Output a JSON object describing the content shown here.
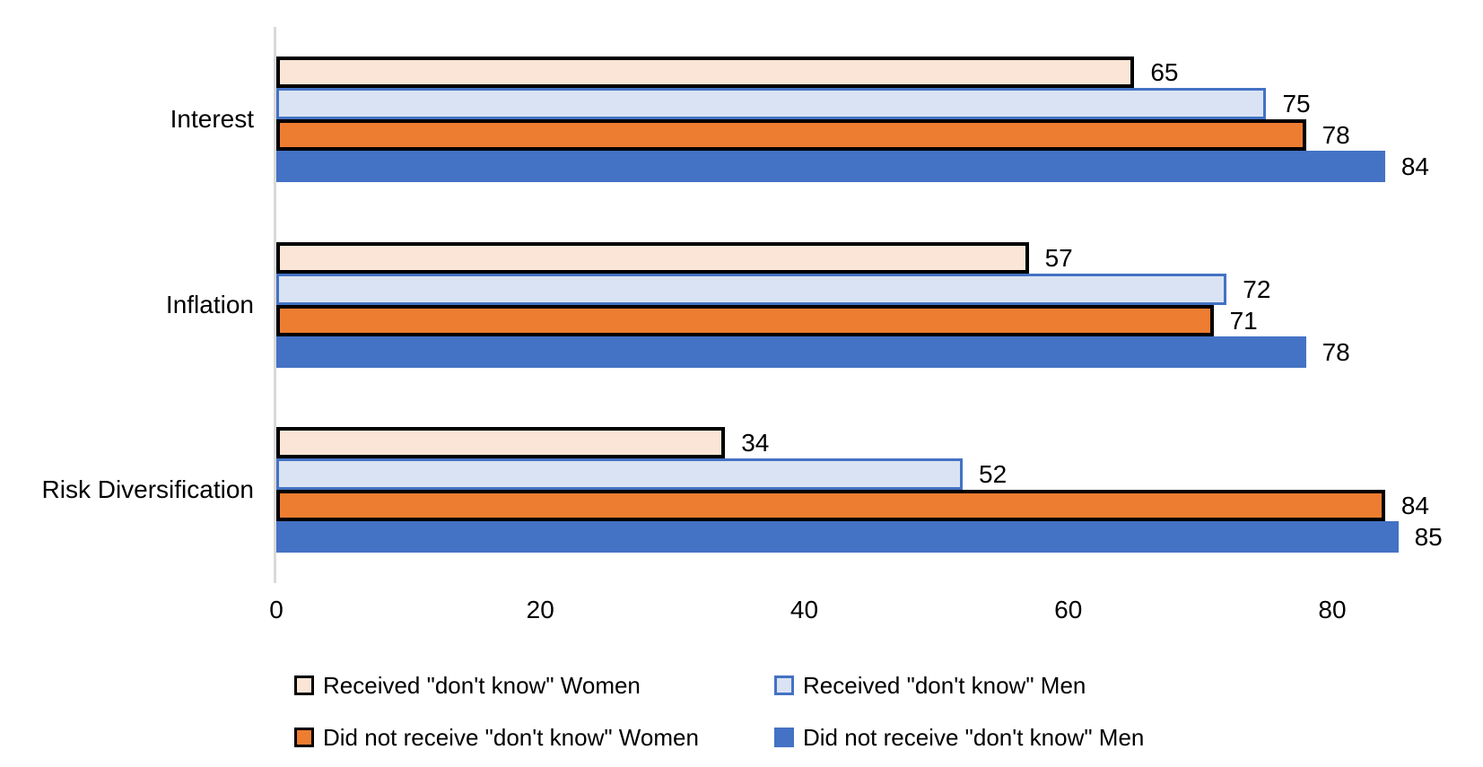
{
  "chart_data": {
    "type": "bar",
    "orientation": "horizontal",
    "title": "",
    "xlabel": "",
    "ylabel": "",
    "categories": [
      "Interest",
      "Inflation",
      "Risk Diversification"
    ],
    "series": [
      {
        "name": "Received \"don't know\" Women",
        "values": [
          65,
          57,
          34
        ],
        "fill": "#FBE5D6",
        "border_color": "#000000",
        "border_width": 4
      },
      {
        "name": "Received \"don't know\" Men",
        "values": [
          75,
          72,
          52
        ],
        "fill": "#DAE3F3",
        "border_color": "#4472C4",
        "border_width": 3
      },
      {
        "name": "Did not receive \"don't know\" Women",
        "values": [
          78,
          71,
          84
        ],
        "fill": "#ED7D31",
        "border_color": "#000000",
        "border_width": 4
      },
      {
        "name": "Did not receive \"don't know\" Men",
        "values": [
          84,
          78,
          85
        ],
        "fill": "#4472C4",
        "border_color": "none",
        "border_width": 0
      }
    ],
    "data_labels": true,
    "x_ticks": [
      0,
      20,
      40,
      60,
      80
    ],
    "xlim": [
      0,
      87
    ],
    "grid": false,
    "legend_position": "bottom",
    "legend_rows": [
      [
        0,
        1
      ],
      [
        2,
        3
      ]
    ]
  },
  "colors": {
    "background": "#FFFFFF",
    "axis_line": "#D9D9D9",
    "text": "#000000"
  }
}
